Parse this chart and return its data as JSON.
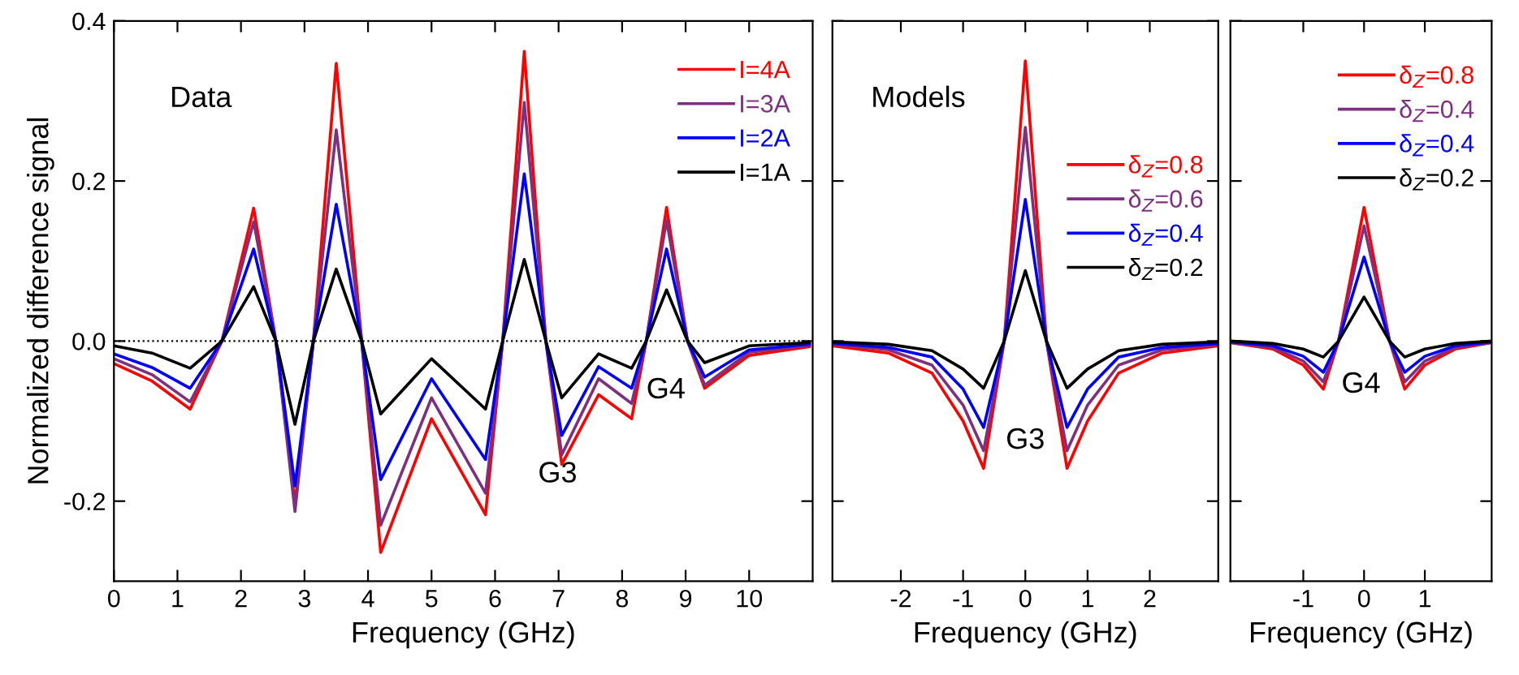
{
  "chart_data": [
    {
      "type": "line",
      "xlabel": "Frequency (GHz)",
      "ylabel": "Normalized difference signal",
      "xlim": [
        0,
        11
      ],
      "xticks": [
        0,
        1,
        2,
        3,
        4,
        5,
        6,
        7,
        8,
        9,
        10
      ],
      "ylim": [
        -0.3,
        0.4
      ],
      "yticks": [
        -0.2,
        {
          "value": 0,
          "label": "0.0"
        },
        0.2,
        0.4
      ],
      "grid": false,
      "legend": "top right",
      "marker": "none",
      "line_style": "solid",
      "x": [
        0,
        0.6,
        1.2,
        1.7,
        2.2,
        2.55,
        2.85,
        3.14,
        3.5,
        3.9,
        4.2,
        5.0,
        5.85,
        6.12,
        6.46,
        6.8,
        7.05,
        7.63,
        8.15,
        8.38,
        8.7,
        9.03,
        9.3,
        10,
        10.95
      ],
      "ref_lines": [
        {
          "axis": "y",
          "value": 0,
          "line_style": "dotted",
          "color": "#000000"
        }
      ],
      "annotations": [
        "Data",
        "G3",
        "G4"
      ],
      "series": [
        {
          "name": "I=4A",
          "color": "#ff0000",
          "values": [
            -0.028,
            -0.05,
            -0.085,
            0,
            0.166,
            0,
            -0.203,
            0,
            0.347,
            0,
            -0.264,
            -0.097,
            -0.217,
            0,
            0.362,
            0,
            -0.154,
            -0.067,
            -0.097,
            0,
            0.167,
            0,
            -0.059,
            -0.018,
            -0.007
          ]
        },
        {
          "name": "I=3A",
          "color": "#7f2f7f",
          "values": [
            -0.022,
            -0.042,
            -0.076,
            0,
            0.149,
            0,
            -0.213,
            0,
            0.264,
            0,
            -0.23,
            -0.071,
            -0.19,
            0,
            0.298,
            0,
            -0.142,
            -0.047,
            -0.078,
            0,
            0.151,
            0,
            -0.055,
            -0.014,
            -0.005
          ]
        },
        {
          "name": "I=2A",
          "color": "#0000ff",
          "values": [
            -0.016,
            -0.033,
            -0.059,
            0,
            0.115,
            0,
            -0.181,
            0,
            0.171,
            0,
            -0.173,
            -0.047,
            -0.148,
            0,
            0.209,
            0,
            -0.118,
            -0.032,
            -0.059,
            0,
            0.115,
            0,
            -0.045,
            -0.011,
            -0.004
          ]
        },
        {
          "name": "I=1A",
          "color": "#000000",
          "values": [
            -0.006,
            -0.015,
            -0.034,
            0,
            0.068,
            0,
            -0.104,
            0,
            0.09,
            0,
            -0.091,
            -0.022,
            -0.085,
            0,
            0.102,
            0,
            -0.071,
            -0.016,
            -0.034,
            0,
            0.064,
            0,
            -0.027,
            -0.006,
            -0.002
          ]
        }
      ]
    },
    {
      "type": "line",
      "xlabel": "Frequency (GHz)",
      "xlim": [
        -3.1,
        3.1
      ],
      "xticks": [
        -2,
        -1,
        0,
        1,
        2
      ],
      "ylim": [
        -0.3,
        0.4
      ],
      "yticks": [
        -0.2,
        0.0,
        0.2,
        0.4
      ],
      "tick_labels": "x",
      "grid": false,
      "legend": "top right",
      "marker": "none",
      "line_style": "solid",
      "x": [
        -3.1,
        -2.2,
        -1.5,
        -1.0,
        -0.67,
        -0.34,
        0,
        0.34,
        0.67,
        1.0,
        1.5,
        2.2,
        3.1
      ],
      "annotations": [
        "Models",
        "G3"
      ],
      "series": [
        {
          "name": "δ$_{Z}$=0.8",
          "color": "#ff0000",
          "values": [
            -0.006,
            -0.015,
            -0.04,
            -0.1,
            -0.159,
            0,
            0.35,
            0,
            -0.159,
            -0.1,
            -0.04,
            -0.015,
            -0.006
          ]
        },
        {
          "name": "δ$_{Z}$=0.6",
          "color": "#7f2f7f",
          "values": [
            -0.004,
            -0.011,
            -0.03,
            -0.08,
            -0.137,
            0,
            0.267,
            0,
            -0.137,
            -0.08,
            -0.03,
            -0.011,
            -0.004
          ]
        },
        {
          "name": "δ$_{Z}$=0.4",
          "color": "#0000ff",
          "values": [
            -0.003,
            -0.008,
            -0.02,
            -0.06,
            -0.108,
            0,
            0.177,
            0,
            -0.108,
            -0.06,
            -0.02,
            -0.008,
            -0.003
          ]
        },
        {
          "name": "δ$_{Z}$=0.2",
          "color": "#000000",
          "values": [
            -0.001,
            -0.004,
            -0.012,
            -0.035,
            -0.059,
            0,
            0.088,
            0,
            -0.059,
            -0.035,
            -0.012,
            -0.004,
            -0.001
          ]
        }
      ]
    },
    {
      "type": "line",
      "xlabel": "Frequency (GHz)",
      "xlim": [
        -2.2,
        2.1
      ],
      "xticks": [
        -1,
        0,
        1
      ],
      "ylim": [
        -0.3,
        0.4
      ],
      "yticks": [
        -0.2,
        0.0,
        0.2,
        0.4
      ],
      "tick_labels": "x",
      "grid": false,
      "legend": "top right",
      "marker": "none",
      "line_style": "solid",
      "x": [
        -2.2,
        -1.5,
        -1.0,
        -0.67,
        -0.42,
        0,
        0.42,
        0.67,
        1.0,
        1.5,
        2.1
      ],
      "annotations": [
        "G4"
      ],
      "series": [
        {
          "name": "δ$_{Z}$=0.8",
          "color": "#ff0000",
          "values": [
            -0.002,
            -0.01,
            -0.03,
            -0.06,
            0,
            0.167,
            0,
            -0.06,
            -0.03,
            -0.01,
            -0.002
          ]
        },
        {
          "name": "δ$_{Z}$=0.4",
          "color": "#7f2f7f",
          "values": [
            -0.002,
            -0.008,
            -0.025,
            -0.051,
            0,
            0.144,
            0,
            -0.051,
            -0.025,
            -0.008,
            -0.002
          ]
        },
        {
          "name": "δ$_{Z}$=0.4",
          "color": "#0000ff",
          "values": [
            -0.001,
            -0.006,
            -0.019,
            -0.039,
            0,
            0.105,
            0,
            -0.039,
            -0.019,
            -0.006,
            -0.001
          ]
        },
        {
          "name": "δ$_{Z}$=0.2",
          "color": "#000000",
          "values": [
            0,
            -0.003,
            -0.01,
            -0.02,
            0,
            0.055,
            0,
            -0.02,
            -0.01,
            -0.003,
            0
          ]
        }
      ]
    }
  ]
}
